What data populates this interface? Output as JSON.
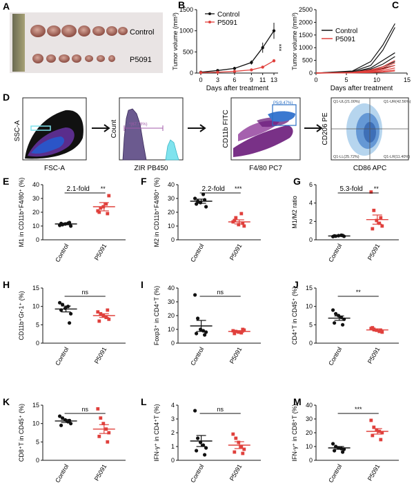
{
  "colors": {
    "control": "#111111",
    "p5091": "#e0403c",
    "flow_purple": "#6a1b7a",
    "flow_cyan": "#7fe3ee",
    "flow_blue": "#2a6fc4"
  },
  "panels": {
    "A": {
      "letter": "A",
      "label_control": "Control",
      "label_p5091": "P5091"
    },
    "D": {
      "letter": "D",
      "plot1": {
        "ylabel": "SSC-A",
        "xlabel": "FSC-A"
      },
      "plot2": {
        "ylabel": "Count",
        "xlabel": "ZIR PB450",
        "gate": "*(67.78%)"
      },
      "plot3": {
        "ylabel": "CD11b FITC",
        "xlabel": "F4/80 PC7",
        "gate": "P5(9.47%)"
      },
      "plot4": {
        "ylabel": "CD206 PE",
        "xlabel": "CD86 APC",
        "q1": "Q1-UL(21.00%)",
        "q2": "Q1-UR(42.56%)",
        "q3": "Q1-LL(25.72%)",
        "q4": "Q1-LR(11.40%)"
      }
    }
  },
  "chart_data": [
    {
      "panel": "B",
      "type": "line",
      "xlabel": "Days after treatment",
      "ylabel": "Tumor volume (mm³)",
      "x": [
        0,
        3,
        6,
        9,
        11,
        13
      ],
      "xticks": [
        "0",
        "3",
        "6",
        "9",
        "11",
        "13"
      ],
      "ylim": [
        0,
        1500
      ],
      "yticks": [
        "0",
        "500",
        "1000",
        "1500"
      ],
      "series": [
        {
          "name": "Control",
          "values": [
            20,
            60,
            110,
            250,
            600,
            1000
          ],
          "err": [
            10,
            15,
            20,
            50,
            120,
            190
          ]
        },
        {
          "name": "P5091",
          "values": [
            10,
            20,
            40,
            75,
            140,
            290
          ],
          "err": [
            5,
            5,
            10,
            15,
            30,
            40
          ]
        }
      ],
      "annotation": "***"
    },
    {
      "panel": "C",
      "type": "line",
      "xlabel": "Days after treatment",
      "ylabel": "Tumor volume (mm³)",
      "xlim": [
        0,
        15
      ],
      "xticks": [
        "0",
        "5",
        "10",
        "15"
      ],
      "ylim": [
        0,
        2500
      ],
      "yticks": [
        "0",
        "500",
        "1000",
        "1500",
        "2000",
        "2500"
      ],
      "legend": [
        "Control",
        "P5091"
      ],
      "series": [
        {
          "name": "Control",
          "x": [
            0,
            6,
            9,
            11,
            13
          ],
          "lines": [
            [
              0,
              80,
              450,
              1100,
              1950
            ],
            [
              0,
              60,
              300,
              900,
              1800
            ],
            [
              0,
              40,
              200,
              500,
              800
            ],
            [
              0,
              30,
              150,
              350,
              650
            ],
            [
              0,
              20,
              100,
              250,
              450
            ],
            [
              0,
              15,
              80,
              180,
              300
            ]
          ]
        },
        {
          "name": "P5091",
          "x": [
            0,
            6,
            9,
            11,
            13
          ],
          "lines": [
            [
              0,
              30,
              120,
              250,
              500
            ],
            [
              0,
              20,
              90,
              200,
              400
            ],
            [
              0,
              15,
              70,
              150,
              300
            ],
            [
              0,
              10,
              50,
              100,
              200
            ],
            [
              0,
              8,
              30,
              60,
              120
            ],
            [
              0,
              5,
              20,
              40,
              80
            ]
          ]
        }
      ]
    },
    {
      "panel": "E",
      "type": "scatter",
      "ylabel": "M1 in CD11b⁺F4/80⁺ (%)",
      "categories": [
        "Control",
        "P5091"
      ],
      "ylim": [
        0,
        40
      ],
      "yticks": [
        "0",
        "10",
        "20",
        "30",
        "40"
      ],
      "fold": "2.1-fold",
      "sig": "**",
      "series": [
        {
          "name": "Control",
          "values": [
            10.5,
            11,
            11.5,
            12,
            10,
            11.8,
            12.5
          ],
          "mean": 11.5,
          "sem": 0.6
        },
        {
          "name": "P5091",
          "values": [
            21,
            23,
            24,
            26,
            32,
            20,
            19
          ],
          "mean": 24,
          "sem": 3
        }
      ]
    },
    {
      "panel": "F",
      "type": "scatter",
      "ylabel": "M2 in CD11b⁺F4/80⁺ (%)",
      "categories": [
        "Control",
        "P5091"
      ],
      "ylim": [
        0,
        40
      ],
      "yticks": [
        "0",
        "10",
        "20",
        "30",
        "40"
      ],
      "fold": "2.2-fold",
      "sig": "***",
      "series": [
        {
          "name": "Control",
          "values": [
            30,
            28,
            27,
            33,
            24,
            26,
            29
          ],
          "mean": 28,
          "sem": 1.5
        },
        {
          "name": "P5091",
          "values": [
            13,
            16,
            11,
            19,
            10,
            14,
            12
          ],
          "mean": 13,
          "sem": 1.5
        }
      ]
    },
    {
      "panel": "G",
      "type": "scatter",
      "ylabel": "M1/M2 ratio",
      "categories": [
        "Control",
        "P5091"
      ],
      "ylim": [
        0,
        6
      ],
      "yticks": [
        "0",
        "2",
        "4",
        "6"
      ],
      "fold": "5.3-fold",
      "sig": "**",
      "series": [
        {
          "name": "Control",
          "values": [
            0.35,
            0.4,
            0.45,
            0.5,
            0.38,
            0.42,
            0.47
          ],
          "mean": 0.42,
          "sem": 0.05
        },
        {
          "name": "P5091",
          "values": [
            5.2,
            3.2,
            2.1,
            1.8,
            1.5,
            1.2,
            2.4
          ],
          "mean": 2.2,
          "sem": 0.5
        }
      ]
    },
    {
      "panel": "H",
      "type": "scatter",
      "ylabel": "CD11b⁺Gr-1⁺ (%)",
      "categories": [
        "Control",
        "P5091"
      ],
      "ylim": [
        0,
        15
      ],
      "yticks": [
        "0",
        "5",
        "10",
        "15"
      ],
      "sig": "ns",
      "series": [
        {
          "name": "Control",
          "values": [
            11,
            10.5,
            9.5,
            10,
            8,
            9,
            5.5
          ],
          "mean": 9.3,
          "sem": 0.8
        },
        {
          "name": "P5091",
          "values": [
            8.5,
            8,
            7.5,
            7,
            6.5,
            6,
            9
          ],
          "mean": 7.5,
          "sem": 0.5
        }
      ]
    },
    {
      "panel": "I",
      "type": "scatter",
      "ylabel": "Foxp3⁺ in CD4⁺T (%)",
      "categories": [
        "Control",
        "P5091"
      ],
      "ylim": [
        0,
        40
      ],
      "yticks": [
        "0",
        "10",
        "20",
        "30",
        "40"
      ],
      "sig": "ns",
      "series": [
        {
          "name": "Control",
          "values": [
            35,
            18,
            10,
            9,
            8,
            7,
            6
          ],
          "mean": 12.5,
          "sem": 4
        },
        {
          "name": "P5091",
          "values": [
            9,
            8.5,
            8,
            7.5,
            9.5,
            7,
            10
          ],
          "mean": 8.5,
          "sem": 0.6
        }
      ]
    },
    {
      "panel": "J",
      "type": "scatter",
      "ylabel": "CD4⁺T in CD45⁺ (%)",
      "categories": [
        "Control",
        "P5091"
      ],
      "ylim": [
        0,
        15
      ],
      "yticks": [
        "0",
        "5",
        "10",
        "15"
      ],
      "sig": "**",
      "series": [
        {
          "name": "Control",
          "values": [
            9,
            8,
            7.5,
            7,
            6.5,
            5.5,
            5
          ],
          "mean": 6.8,
          "sem": 0.6
        },
        {
          "name": "P5091",
          "values": [
            4,
            3.8,
            3.5,
            3.2,
            3,
            4.2,
            3.4
          ],
          "mean": 3.6,
          "sem": 0.3
        }
      ]
    },
    {
      "panel": "K",
      "type": "scatter",
      "ylabel": "CD8⁺T in CD45⁺ (%)",
      "categories": [
        "Control",
        "P5091"
      ],
      "ylim": [
        0,
        15
      ],
      "yticks": [
        "0",
        "5",
        "10",
        "15"
      ],
      "sig": "ns",
      "series": [
        {
          "name": "Control",
          "values": [
            12,
            11.5,
            11,
            10.5,
            10,
            9.5,
            10.8
          ],
          "mean": 10.7,
          "sem": 0.4
        },
        {
          "name": "P5091",
          "values": [
            14,
            11.5,
            10,
            8.5,
            7.5,
            6.5,
            5
          ],
          "mean": 8.5,
          "sem": 1.2
        }
      ]
    },
    {
      "panel": "L",
      "type": "scatter",
      "ylabel": "IFN-γ⁺ in CD4⁺T (%)",
      "categories": [
        "Control",
        "P5091"
      ],
      "ylim": [
        0,
        4
      ],
      "yticks": [
        "0",
        "1",
        "2",
        "3",
        "4"
      ],
      "sig": "ns",
      "series": [
        {
          "name": "Control",
          "values": [
            3.6,
            1.6,
            1.3,
            1.1,
            0.9,
            0.7,
            0.4
          ],
          "mean": 1.4,
          "sem": 0.4
        },
        {
          "name": "P5091",
          "values": [
            1.9,
            1.6,
            1.3,
            1.0,
            0.8,
            0.6,
            0.5
          ],
          "mean": 1.1,
          "sem": 0.25
        }
      ]
    },
    {
      "panel": "M",
      "type": "scatter",
      "ylabel": "IFN-γ⁺ in CD8⁺T (%)",
      "categories": [
        "Control",
        "P5091"
      ],
      "ylim": [
        0,
        40
      ],
      "yticks": [
        "0",
        "10",
        "20",
        "30",
        "40"
      ],
      "sig": "***",
      "series": [
        {
          "name": "Control",
          "values": [
            12,
            10,
            9,
            8.5,
            8,
            7,
            6
          ],
          "mean": 9,
          "sem": 1
        },
        {
          "name": "P5091",
          "values": [
            29,
            24,
            22,
            21,
            20,
            18,
            15
          ],
          "mean": 21,
          "sem": 2
        }
      ]
    }
  ]
}
